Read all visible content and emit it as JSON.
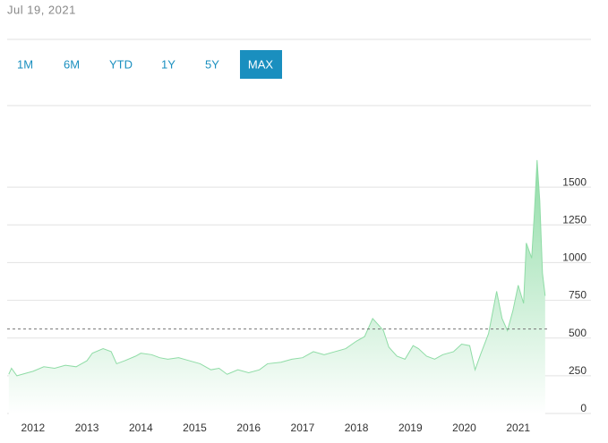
{
  "header": {
    "date": "Jul 19, 2021"
  },
  "range_buttons": [
    "1M",
    "6M",
    "YTD",
    "1Y",
    "5Y",
    "MAX"
  ],
  "active_range": 5,
  "chart_data": {
    "type": "area",
    "color": "#8fdca6",
    "x": [
      2011.55,
      2011.6,
      2011.7,
      2011.9,
      2012.0,
      2012.2,
      2012.4,
      2012.6,
      2012.8,
      2012.9,
      2013.0,
      2013.1,
      2013.3,
      2013.45,
      2013.55,
      2013.7,
      2013.9,
      2014.0,
      2014.2,
      2014.35,
      2014.5,
      2014.7,
      2014.9,
      2015.1,
      2015.3,
      2015.45,
      2015.6,
      2015.8,
      2016.0,
      2016.2,
      2016.35,
      2016.6,
      2016.8,
      2017.0,
      2017.2,
      2017.4,
      2017.6,
      2017.8,
      2018.0,
      2018.15,
      2018.3,
      2018.4,
      2018.5,
      2018.6,
      2018.75,
      2018.9,
      2019.05,
      2019.15,
      2019.3,
      2019.45,
      2019.6,
      2019.8,
      2019.95,
      2020.1,
      2020.2,
      2020.3,
      2020.45,
      2020.6,
      2020.7,
      2020.8,
      2020.9,
      2021.0,
      2021.1,
      2021.15,
      2021.25,
      2021.3,
      2021.35,
      2021.4,
      2021.45,
      2021.5
    ],
    "values": [
      230,
      270,
      220,
      240,
      250,
      280,
      270,
      290,
      280,
      300,
      320,
      370,
      400,
      380,
      300,
      320,
      350,
      370,
      360,
      340,
      330,
      340,
      320,
      300,
      260,
      270,
      230,
      260,
      240,
      260,
      300,
      310,
      330,
      340,
      380,
      360,
      380,
      400,
      450,
      480,
      600,
      560,
      520,
      410,
      350,
      330,
      420,
      400,
      350,
      330,
      360,
      380,
      430,
      420,
      260,
      360,
      500,
      780,
      600,
      520,
      650,
      820,
      700,
      1100,
      1000,
      1300,
      1650,
      1380,
      900,
      750
    ],
    "reference_value": 530,
    "xlim": [
      2011.52,
      2022.35
    ],
    "ylim": [
      0,
      1750
    ],
    "xticks": [
      2012,
      2013,
      2014,
      2015,
      2016,
      2017,
      2018,
      2019,
      2020,
      2021
    ],
    "yticks": [
      0,
      250,
      500,
      750,
      1000,
      1250,
      1500
    ],
    "grid": true
  }
}
